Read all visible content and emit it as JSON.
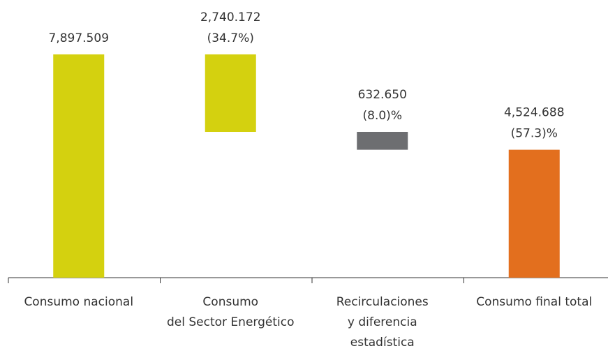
{
  "chart_data": {
    "type": "waterfall",
    "categories": [
      "Consumo nacional",
      "Consumo\ndel Sector Energético",
      "Recirculaciones\ny diferencia\nestadística",
      "Consumo final total"
    ],
    "values": [
      7897.509,
      2740.172,
      632.65,
      4524.688
    ],
    "value_labels": [
      "7,897.509",
      "2,740.172",
      "632.650",
      "4,524.688"
    ],
    "percents": [
      null,
      34.7,
      8.0,
      57.3
    ],
    "percent_labels": [
      null,
      "(34.7%)",
      "(8.0)%",
      "(57.3)%"
    ],
    "measures": [
      "total",
      "decrease",
      "decrease",
      "total"
    ],
    "colors": [
      "#d4d10f",
      "#d4d10f",
      "#6d6e71",
      "#e36f1e"
    ],
    "ylim": [
      0,
      8000
    ]
  }
}
